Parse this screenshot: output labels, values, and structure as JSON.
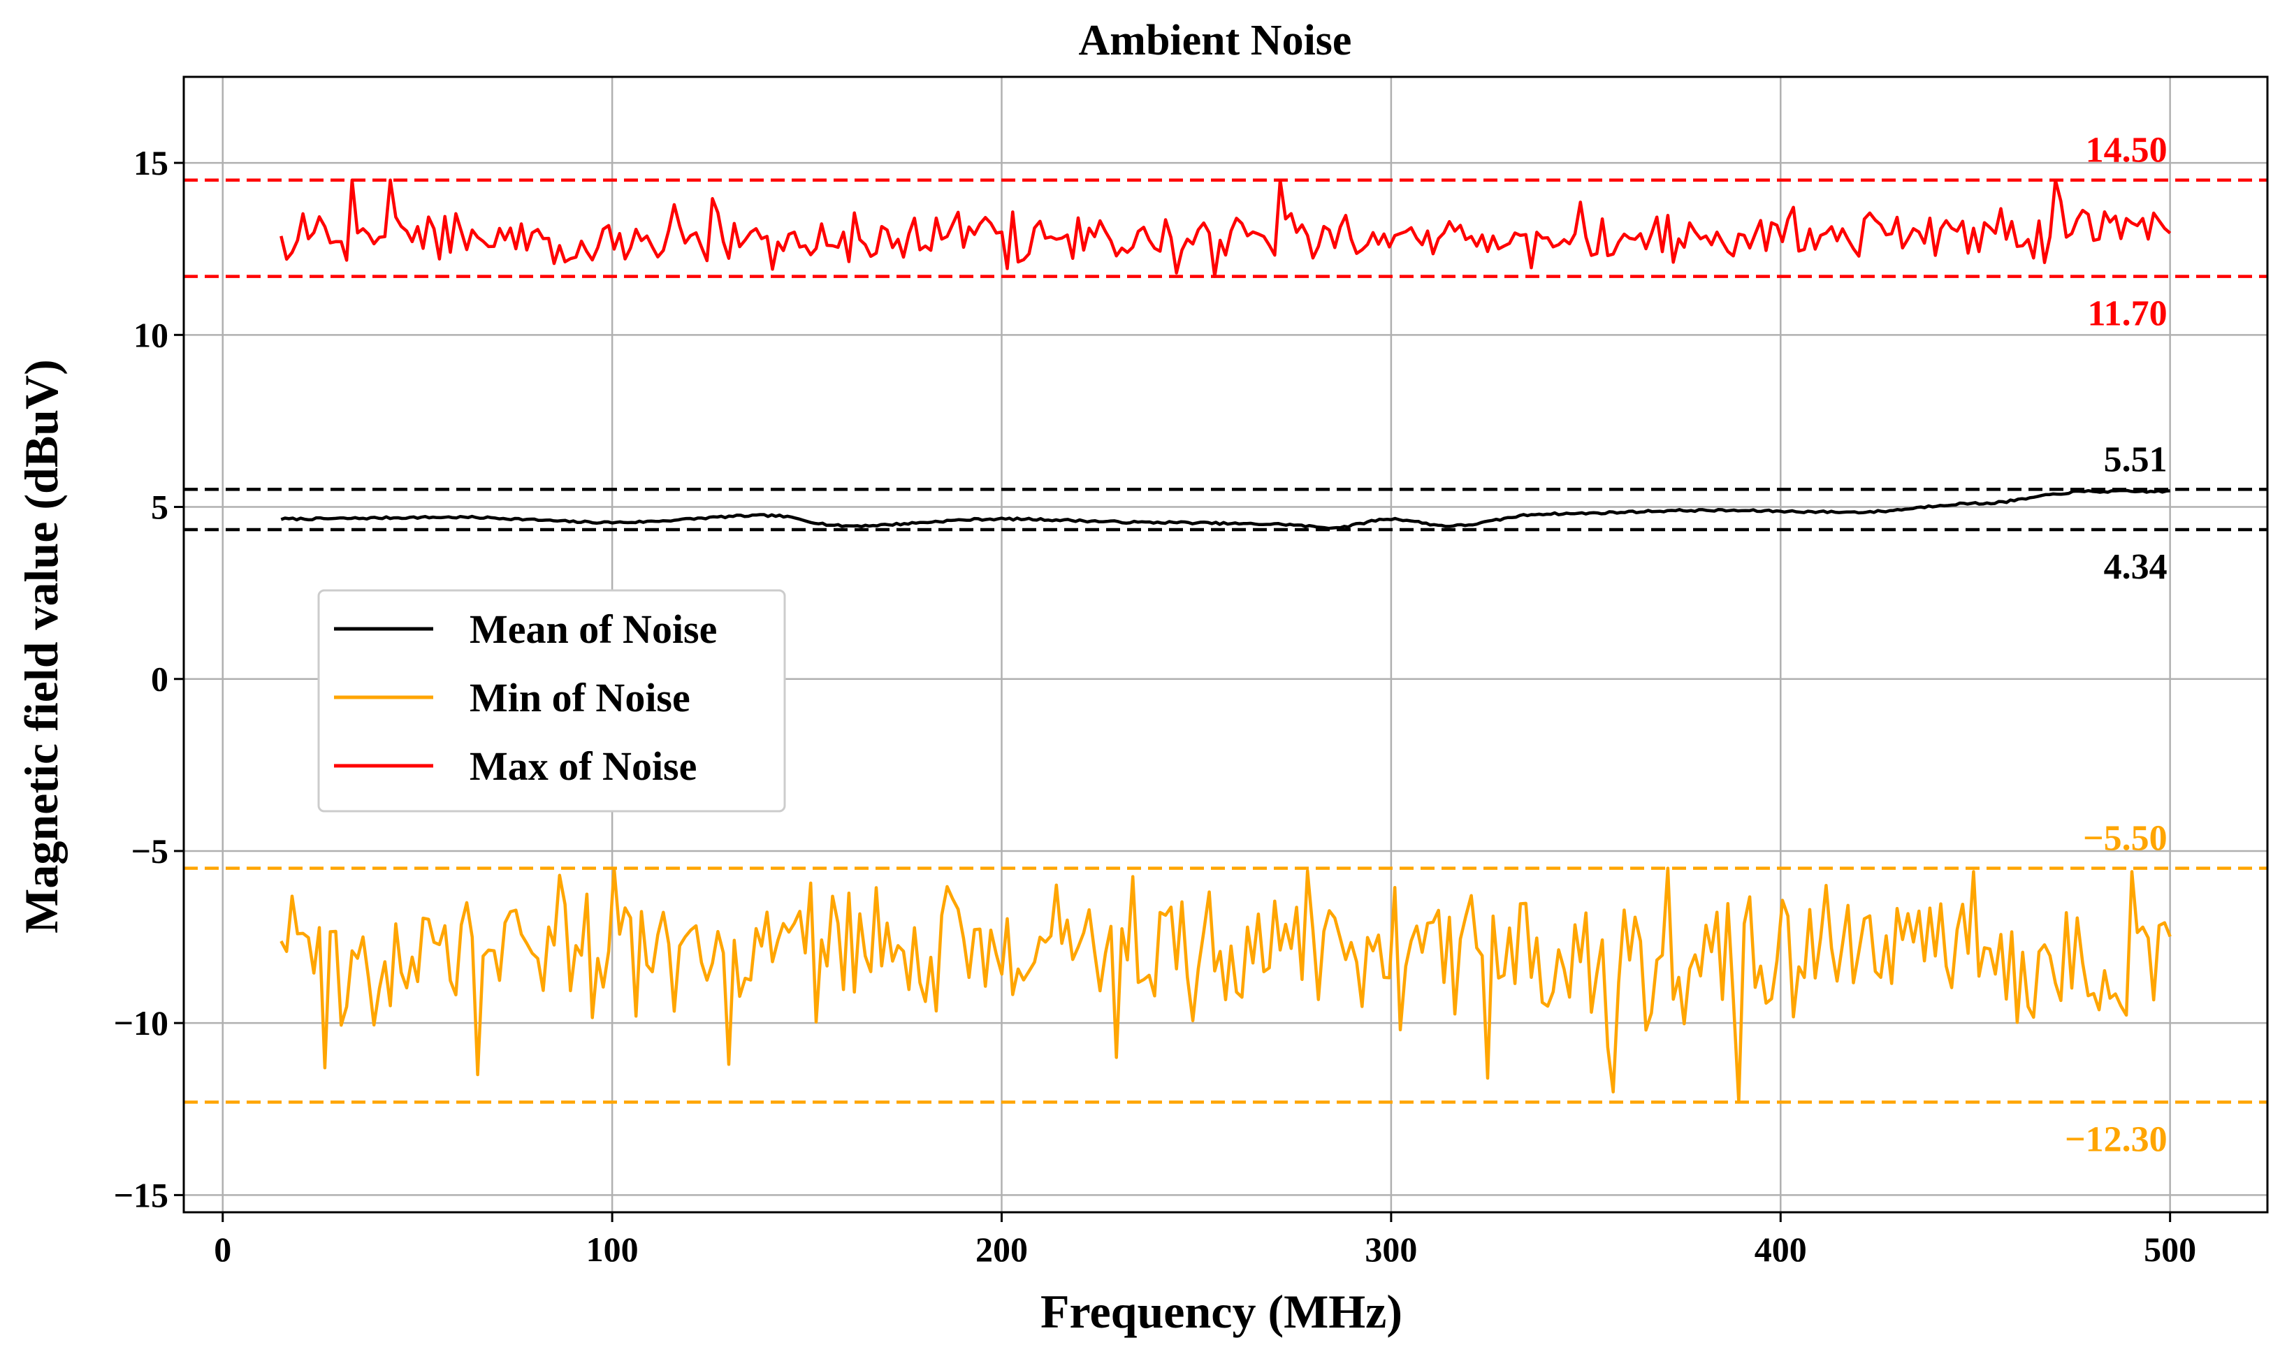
{
  "chart_data": {
    "type": "line",
    "title": "Ambient Noise",
    "xlabel": "Frequency (MHz)",
    "ylabel": "Magnetic field value (dBuV)",
    "xlim": [
      -10,
      525
    ],
    "ylim": [
      -15.5,
      17.5
    ],
    "xticks": [
      0,
      100,
      200,
      300,
      400,
      500
    ],
    "xtick_labels": [
      "0",
      "100",
      "200",
      "300",
      "400",
      "500"
    ],
    "yticks": [
      -15,
      -10,
      -5,
      0,
      5,
      10,
      15
    ],
    "ytick_labels": [
      "−15",
      "−10",
      "−5",
      "0",
      "5",
      "10",
      "15"
    ],
    "grid": true,
    "legend_position": "center-left",
    "x_start": 15,
    "x_end": 500,
    "series": [
      {
        "name": "Mean of Noise",
        "label": "Mean of Noise",
        "color": "#000000",
        "style": "smooth",
        "min": 4.34,
        "max": 5.51,
        "anchors": [
          [
            15,
            4.65
          ],
          [
            60,
            4.7
          ],
          [
            100,
            4.55
          ],
          [
            140,
            4.75
          ],
          [
            160,
            4.45
          ],
          [
            200,
            4.65
          ],
          [
            240,
            4.55
          ],
          [
            270,
            4.5
          ],
          [
            285,
            4.4
          ],
          [
            300,
            4.65
          ],
          [
            315,
            4.45
          ],
          [
            340,
            4.8
          ],
          [
            380,
            4.9
          ],
          [
            420,
            4.85
          ],
          [
            450,
            5.1
          ],
          [
            480,
            5.45
          ],
          [
            500,
            5.45
          ]
        ]
      },
      {
        "name": "Min of Noise",
        "label": "Min of Noise",
        "color": "#ffa500",
        "style": "noisy",
        "min": -12.3,
        "max": -5.5,
        "center": -7.9,
        "spread": 1.2,
        "spikes": [
          [
            26,
            -11.3
          ],
          [
            65,
            -11.5
          ],
          [
            130,
            -11.2
          ],
          [
            230,
            -11.0
          ],
          [
            325,
            -11.6
          ],
          [
            357,
            -12.0
          ],
          [
            389,
            -12.3
          ],
          [
            371,
            -5.5
          ],
          [
            450,
            -5.6
          ],
          [
            490,
            -5.6
          ]
        ]
      },
      {
        "name": "Max of Noise",
        "label": "Max of Noise",
        "color": "#ff0000",
        "style": "noisy",
        "min": 11.7,
        "max": 14.5,
        "center": 12.8,
        "spread": 0.45,
        "spikes": [
          [
            33,
            14.5
          ],
          [
            43,
            14.5
          ],
          [
            271,
            14.5
          ],
          [
            470,
            14.5
          ],
          [
            255,
            11.7
          ],
          [
            245,
            11.8
          ],
          [
            16,
            12.2
          ]
        ]
      }
    ],
    "reference_lines": [
      {
        "value": 14.5,
        "label": "14.50",
        "color": "#ff0000",
        "label_side": "above"
      },
      {
        "value": 11.7,
        "label": "11.70",
        "color": "#ff0000",
        "label_side": "below"
      },
      {
        "value": 5.51,
        "label": "5.51",
        "color": "#000000",
        "label_side": "above"
      },
      {
        "value": 4.34,
        "label": "4.34",
        "color": "#000000",
        "label_side": "below"
      },
      {
        "value": -5.5,
        "label": "−5.50",
        "color": "#ffa500",
        "label_side": "above"
      },
      {
        "value": -12.3,
        "label": "−12.30",
        "color": "#ffa500",
        "label_side": "below"
      }
    ]
  }
}
